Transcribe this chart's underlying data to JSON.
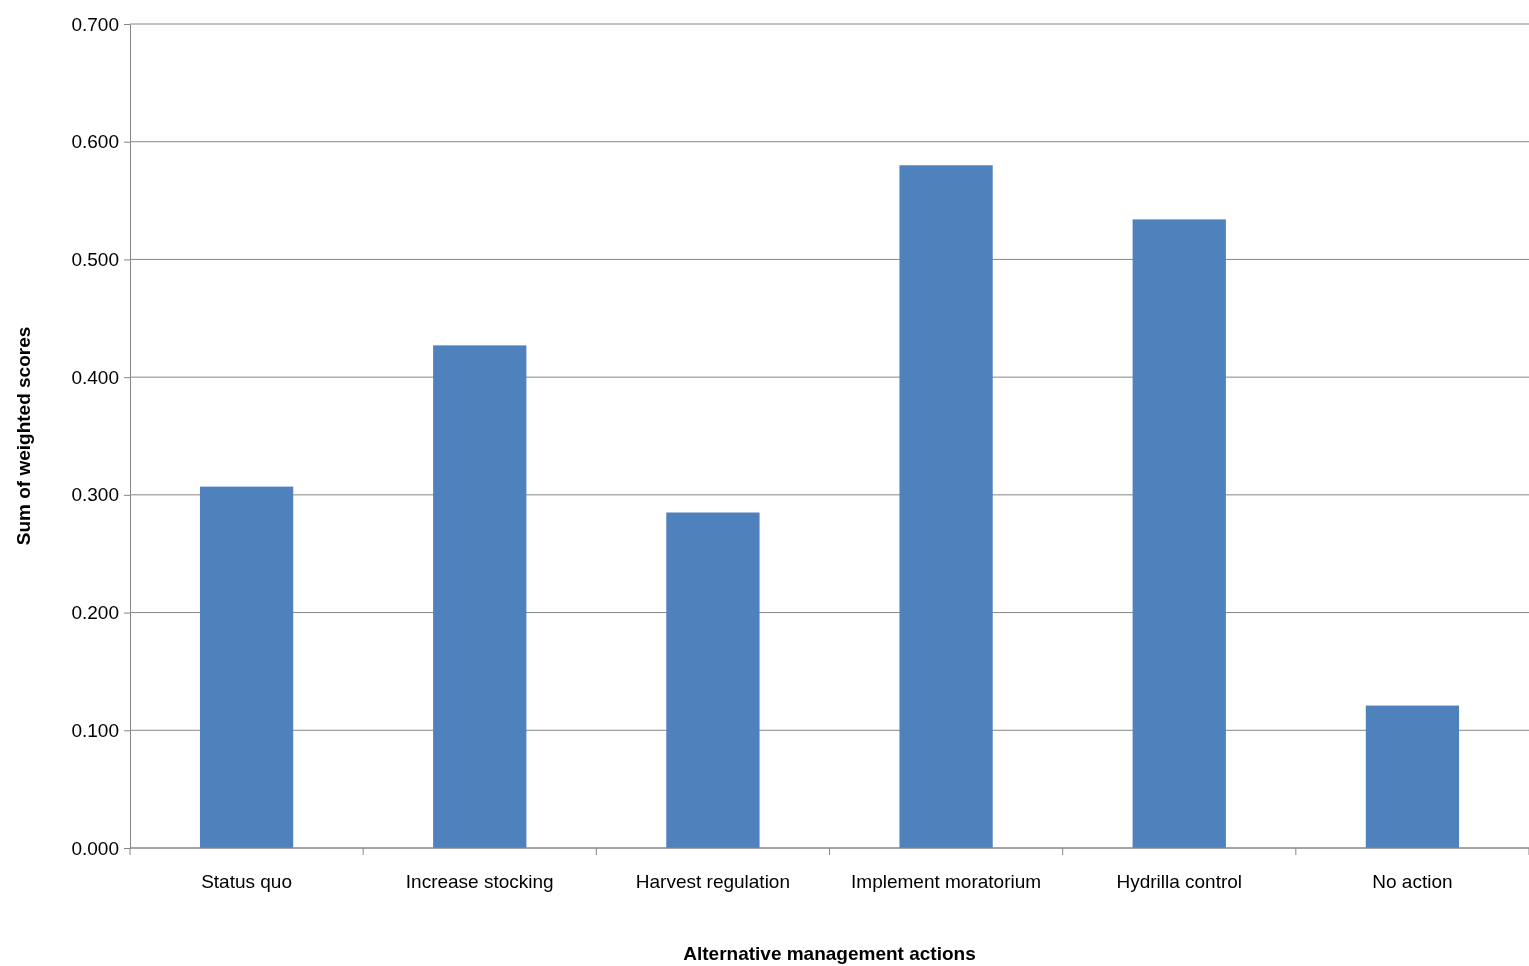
{
  "chart_data": {
    "type": "bar",
    "xlabel": "Alternative management actions",
    "ylabel": "Sum of weighted scores",
    "categories": [
      "Status quo",
      "Increase stocking",
      "Harvest regulation",
      "Implement moratorium",
      "Hydrilla control",
      "No action"
    ],
    "values": [
      0.307,
      0.427,
      0.285,
      0.58,
      0.534,
      0.121
    ],
    "color": "#4f81bd",
    "ylim": [
      0,
      0.7
    ],
    "yticks": [
      {
        "value": 0,
        "label": "0.000"
      },
      {
        "value": 0.1,
        "label": "0.100"
      },
      {
        "value": 0.2,
        "label": "0.200"
      },
      {
        "value": 0.3,
        "label": "0.300"
      },
      {
        "value": 0.4,
        "label": "0.400"
      },
      {
        "value": 0.5,
        "label": "0.500"
      },
      {
        "value": 0.6,
        "label": "0.600"
      },
      {
        "value": 0.7,
        "label": "0.700"
      }
    ],
    "grid": "y"
  }
}
